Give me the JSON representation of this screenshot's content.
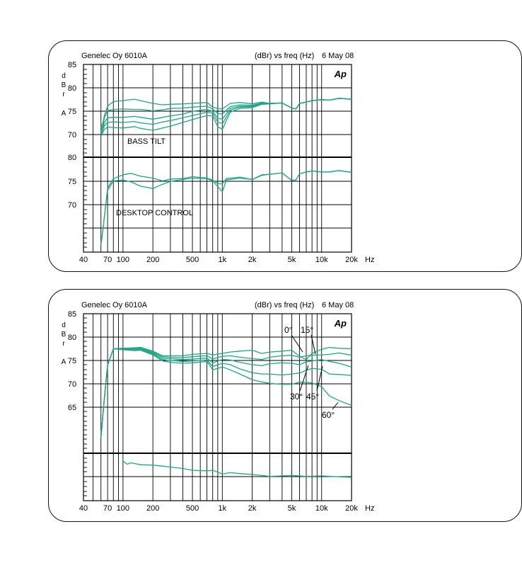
{
  "colors": {
    "trace": "#1fa687",
    "grid": "#000000",
    "frame": "#111111"
  },
  "charts": [
    {
      "header_left": "Genelec Oy 6010A",
      "header_right_a": "(dBr) vs freq (Hz)",
      "header_right_b": "6 May 08",
      "logo": "Ap",
      "ylabel": [
        "d",
        "B",
        "r",
        "A"
      ],
      "y_ticks_upper": [
        "85",
        "80",
        "75",
        "70"
      ],
      "y_ticks_lower": [
        "80",
        "75",
        "70"
      ],
      "x_ticks": [
        "40",
        "70",
        "100",
        "200",
        "500",
        "1k",
        "2k",
        "5k",
        "10k",
        "20k"
      ],
      "x_unit": "Hz",
      "annotations": [
        "BASS TILT",
        "DESKTOP CONTROL"
      ]
    },
    {
      "header_left": "Genelec Oy 6010A",
      "header_right_a": "(dBr) vs freq (Hz)",
      "header_right_b": "6 May 08",
      "logo": "Ap",
      "ylabel": [
        "d",
        "B",
        "r",
        "A"
      ],
      "y_ticks": [
        "85",
        "80",
        "75",
        "70",
        "65"
      ],
      "x_ticks": [
        "40",
        "70",
        "100",
        "200",
        "500",
        "1k",
        "2k",
        "5k",
        "10k",
        "20k"
      ],
      "x_unit": "Hz",
      "angle_labels": [
        "0°",
        "15°",
        "30°",
        "45°",
        "60°"
      ]
    }
  ],
  "chart_data": [
    {
      "type": "line",
      "title": "Genelec Oy 6010A",
      "xlabel": "Hz",
      "ylabel": "dBrA",
      "x_scale": "log",
      "xlim": [
        40,
        20000
      ],
      "subplots": [
        {
          "name": "BASS TILT",
          "ylim": [
            65,
            85
          ],
          "series": [
            {
              "x": [
                60,
                63,
                65,
                70,
                80,
                100,
                130,
                150,
                200,
                250,
                300,
                400,
                500,
                700,
                800,
                900,
                1000,
                1200,
                1500,
                2000,
                2500,
                3000,
                4000,
                5000,
                5500,
                6000,
                7000,
                8000,
                10000,
                12000,
                15000,
                20000
              ],
              "y": [
                71.5,
                72.5,
                74,
                76,
                77,
                77.2,
                77.5,
                77.2,
                76.6,
                76.3,
                76.4,
                76.5,
                76.6,
                76.8,
                75.8,
                75.5,
                75.4,
                76.6,
                76.8,
                76.5,
                76.9,
                76.6,
                76.7,
                75.6,
                75.4,
                76.6,
                76.9,
                77.2,
                77.4,
                77.3,
                77.7,
                77.5
              ]
            },
            {
              "x": [
                60,
                63,
                65,
                70,
                80,
                100,
                130,
                150,
                200,
                250,
                300,
                400,
                500,
                700,
                800,
                900,
                1000,
                1200,
                1500,
                2000,
                2500,
                3000,
                4000,
                5000,
                5500,
                6000,
                7000,
                8000,
                10000,
                12000,
                15000,
                20000
              ],
              "y": [
                71,
                72,
                73.5,
                75,
                75.3,
                75.4,
                75.3,
                75.3,
                75,
                75.2,
                75.5,
                75.6,
                75.8,
                76,
                75.4,
                74.4,
                74.3,
                75.9,
                76.3,
                76.2,
                76.7,
                76.6,
                76.7,
                75.6,
                75.4,
                76.6,
                76.9,
                77.2,
                77.4,
                77.3,
                77.7,
                77.5
              ]
            },
            {
              "x": [
                60,
                63,
                65,
                70,
                80,
                100,
                130,
                150,
                200,
                250,
                300,
                400,
                500,
                700,
                800,
                900,
                1000,
                1200,
                1500,
                2000,
                2500,
                3000,
                4000,
                5000,
                5500,
                6000,
                7000,
                8000,
                10000,
                12000,
                15000,
                20000
              ],
              "y": [
                70.5,
                71.5,
                72.5,
                73.5,
                73.6,
                73.6,
                73.8,
                73.6,
                73.2,
                73.6,
                73.9,
                74.3,
                74.9,
                75.3,
                74.9,
                73.4,
                73.2,
                75.5,
                76,
                76,
                76.6,
                76.6,
                76.7,
                75.6,
                75.4,
                76.6,
                76.9,
                77.2,
                77.4,
                77.3,
                77.7,
                77.5
              ]
            },
            {
              "x": [
                60,
                63,
                65,
                70,
                80,
                100,
                130,
                150,
                200,
                250,
                300,
                400,
                500,
                700,
                800,
                900,
                1000,
                1200,
                1500,
                2000,
                2500,
                3000,
                4000,
                5000,
                5500,
                6000,
                7000,
                8000,
                10000,
                12000,
                15000,
                20000
              ],
              "y": [
                70,
                71,
                71.8,
                72.5,
                72.6,
                72.5,
                72.7,
                72.4,
                72.1,
                72.6,
                72.9,
                73.5,
                74,
                74.7,
                74.5,
                72.6,
                72.2,
                75.1,
                75.8,
                75.9,
                76.5,
                76.6,
                76.7,
                75.6,
                75.4,
                76.6,
                76.9,
                77.2,
                77.4,
                77.3,
                77.7,
                77.5
              ]
            },
            {
              "x": [
                60,
                63,
                65,
                70,
                80,
                100,
                130,
                150,
                200,
                250,
                300,
                400,
                500,
                700,
                800,
                900,
                1000,
                1200,
                1500,
                2000,
                2500,
                3000,
                4000,
                5000,
                5500,
                6000,
                7000,
                8000,
                10000,
                12000,
                15000,
                20000
              ],
              "y": [
                69.5,
                70.5,
                71,
                71.5,
                71.4,
                71.3,
                71.6,
                71.2,
                70.8,
                71.3,
                71.7,
                72.5,
                73.1,
                74,
                73.9,
                71.6,
                71,
                74.7,
                75.5,
                75.7,
                76.4,
                76.5,
                76.7,
                75.6,
                75.4,
                76.6,
                76.9,
                77.2,
                77.4,
                77.3,
                77.7,
                77.5
              ]
            }
          ]
        },
        {
          "name": "DESKTOP CONTROL",
          "ylim": [
            60.5,
            80
          ],
          "series": [
            {
              "x": [
                60,
                63,
                67,
                70,
                80,
                100,
                120,
                150,
                200,
                250,
                300,
                400,
                500,
                700,
                800,
                900,
                1000,
                1100,
                1500,
                2000,
                2500,
                3000,
                4000,
                5000,
                5500,
                6000,
                7000,
                8000,
                10000,
                12000,
                15000,
                20000
              ],
              "y": [
                61.5,
                65,
                70,
                73.5,
                75.5,
                76.3,
                76.6,
                76,
                75.6,
                75,
                75.4,
                75.5,
                75.9,
                75.6,
                75.2,
                74.4,
                74.4,
                75.5,
                75.8,
                75.3,
                76.3,
                76.4,
                76.7,
                75.1,
                75.2,
                76.5,
                76.9,
                77.1,
                76.9,
                76.9,
                77.2,
                76.8
              ]
            },
            {
              "x": [
                60,
                63,
                67,
                70,
                80,
                100,
                120,
                150,
                200,
                250,
                300,
                400,
                500,
                700,
                800,
                900,
                1000,
                1100,
                1500,
                2000,
                2500,
                3000,
                4000,
                5000,
                5500,
                6000,
                7000,
                8000,
                10000,
                12000,
                15000,
                20000
              ],
              "y": [
                61.5,
                65,
                70,
                73,
                75,
                75.2,
                74.8,
                73.9,
                73.4,
                74.3,
                74.9,
                75.3,
                75.6,
                75.5,
                75,
                73.8,
                72.7,
                75.2,
                75.6,
                75.3,
                76.2,
                76.4,
                76.7,
                75.1,
                75.2,
                76.5,
                76.9,
                77.1,
                76.9,
                76.9,
                77.2,
                76.8
              ]
            }
          ]
        }
      ]
    },
    {
      "type": "line",
      "title": "Genelec Oy 6010A",
      "xlabel": "Hz",
      "ylabel": "dBrA",
      "x_scale": "log",
      "xlim": [
        40,
        20000
      ],
      "upper_ylim": [
        55,
        85
      ],
      "series": [
        {
          "name": "0°",
          "x": [
            60,
            65,
            70,
            80,
            100,
            130,
            150,
            200,
            250,
            300,
            400,
            500,
            700,
            800,
            1000,
            1200,
            1500,
            2000,
            2500,
            3000,
            4000,
            5000,
            6000,
            7000,
            8000,
            10000,
            12000,
            15000,
            20000
          ],
          "y": [
            58.5,
            67,
            74,
            77.5,
            77.6,
            77.7,
            77.8,
            77,
            76,
            76,
            76,
            76.3,
            76.5,
            76.2,
            76.5,
            76.8,
            77,
            77.2,
            76.5,
            76.8,
            77,
            77.2,
            75.9,
            75.2,
            76.5,
            77.4,
            77.8,
            77.6,
            77.5
          ]
        },
        {
          "name": "15°",
          "x": [
            60,
            65,
            70,
            80,
            100,
            130,
            150,
            200,
            250,
            300,
            400,
            500,
            700,
            800,
            1000,
            1200,
            1500,
            2000,
            2500,
            3000,
            4000,
            5000,
            6000,
            7000,
            8000,
            10000,
            12000,
            15000,
            20000
          ],
          "y": [
            58.5,
            67,
            74,
            77.5,
            77.6,
            77.6,
            77.7,
            76.8,
            75.8,
            75.7,
            75.6,
            75.8,
            76,
            75.3,
            75.9,
            76,
            75.7,
            75.4,
            75.2,
            75.7,
            76,
            76.1,
            75.7,
            76,
            76.1,
            76.2,
            76.3,
            76.6,
            76.1
          ]
        },
        {
          "name": "30°",
          "x": [
            60,
            65,
            70,
            80,
            100,
            130,
            150,
            200,
            250,
            300,
            400,
            500,
            700,
            800,
            1000,
            1200,
            1500,
            2000,
            2500,
            3000,
            4000,
            5000,
            6000,
            7000,
            8000,
            10000,
            12000,
            15000,
            20000
          ],
          "y": [
            58.5,
            67,
            74,
            77.5,
            77.5,
            77.5,
            77.5,
            76.6,
            75.5,
            75.4,
            75.2,
            75.3,
            75.5,
            74.5,
            75.2,
            75.1,
            74.6,
            74.1,
            73.9,
            74.3,
            74.5,
            74.4,
            74.1,
            74.7,
            74.9,
            75.2,
            74.8,
            74.4,
            73.6
          ]
        },
        {
          "name": "45°",
          "x": [
            60,
            65,
            70,
            80,
            100,
            130,
            150,
            200,
            250,
            300,
            400,
            500,
            700,
            800,
            1000,
            1200,
            1500,
            2000,
            2500,
            3000,
            4000,
            5000,
            6000,
            7000,
            8000,
            10000,
            12000,
            15000,
            20000
          ],
          "y": [
            58.5,
            67,
            74,
            77.5,
            77.4,
            77.3,
            77.3,
            76.4,
            75.2,
            75,
            74.8,
            74.9,
            75.1,
            73.7,
            74.4,
            74.1,
            73.2,
            72.4,
            72.1,
            72.1,
            71.9,
            72.1,
            72.3,
            72.9,
            73.3,
            73.1,
            72.1,
            72,
            71.8
          ]
        },
        {
          "name": "60°",
          "x": [
            60,
            65,
            70,
            80,
            100,
            130,
            150,
            200,
            250,
            300,
            400,
            500,
            700,
            800,
            1000,
            1200,
            1500,
            2000,
            2500,
            3000,
            4000,
            5000,
            6000,
            7000,
            8000,
            10000,
            12000,
            15000,
            20000
          ],
          "y": [
            58.5,
            67,
            74,
            77.5,
            77.3,
            77.1,
            77.2,
            76.2,
            74.9,
            74.6,
            74.4,
            74.5,
            74.8,
            73,
            73.6,
            73,
            72.1,
            70.9,
            70.4,
            70.1,
            69.9,
            69.9,
            70.4,
            70.3,
            70.2,
            69.4,
            67.4,
            66.4,
            65.4
          ]
        },
        {
          "name": "",
          "x": [
            100,
            110,
            120,
            150,
            200,
            250,
            300,
            400,
            500,
            700,
            800,
            900,
            1000,
            1200,
            1500,
            2000,
            2500,
            3000,
            4000,
            5000,
            7000,
            10000,
            15000,
            20000
          ],
          "y": [
            53.5,
            52.8,
            53.1,
            52.7,
            52.6,
            52.4,
            52.2,
            51.9,
            51.5,
            51.4,
            51.5,
            51.1,
            50.7,
            51,
            50.8,
            50.6,
            50.4,
            50.2,
            50.3,
            50.4,
            50.2,
            50.3,
            50.1,
            50
          ]
        }
      ]
    }
  ]
}
